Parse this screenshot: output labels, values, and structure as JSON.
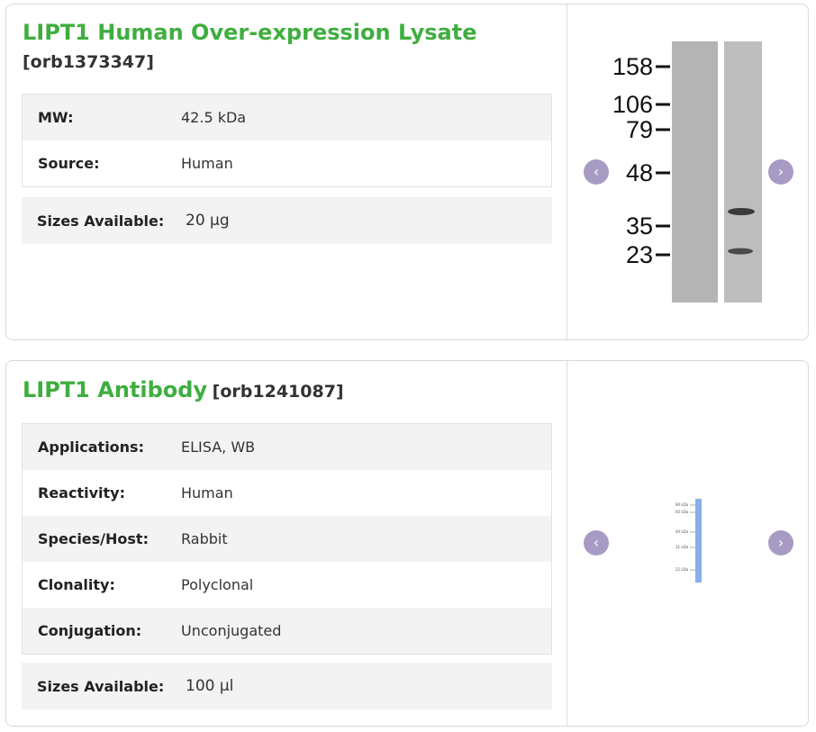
{
  "products": [
    {
      "name": "LIPT1 Human Over-expression Lysate",
      "catalog": "[orb1373347]",
      "specs": [
        {
          "label": "MW:",
          "value": "42.5 kDa"
        },
        {
          "label": "Source:",
          "value": "Human"
        }
      ],
      "sizes_label": "Sizes Available:",
      "sizes_value": "20 µg",
      "blot_markers": [
        "158",
        "106",
        "79",
        "48",
        "35",
        "23"
      ]
    },
    {
      "name": "LIPT1 Antibody",
      "catalog": "[orb1241087]",
      "specs": [
        {
          "label": "Applications:",
          "value": "ELISA,  WB"
        },
        {
          "label": "Reactivity:",
          "value": "Human"
        },
        {
          "label": "Species/Host:",
          "value": "Rabbit"
        },
        {
          "label": "Clonality:",
          "value": "Polyclonal"
        },
        {
          "label": "Conjugation:",
          "value": "Unconjugated"
        }
      ],
      "sizes_label": "Sizes Available:",
      "sizes_value": "100 µl",
      "blot_markers": [
        "90 kDa",
        "60 kDa",
        "40 kDa",
        "31 kDa",
        "22 kDa"
      ]
    }
  ],
  "carousel": {
    "prev_icon": "chevron-left-icon",
    "next_icon": "chevron-right-icon",
    "prev_glyph": "‹",
    "next_glyph": "›"
  },
  "colors": {
    "title_green": "#3fae3f",
    "nav_button": "#a79bc3",
    "blot_lane": "#b4b4b4",
    "antibody_lane": "#88b0e8"
  }
}
